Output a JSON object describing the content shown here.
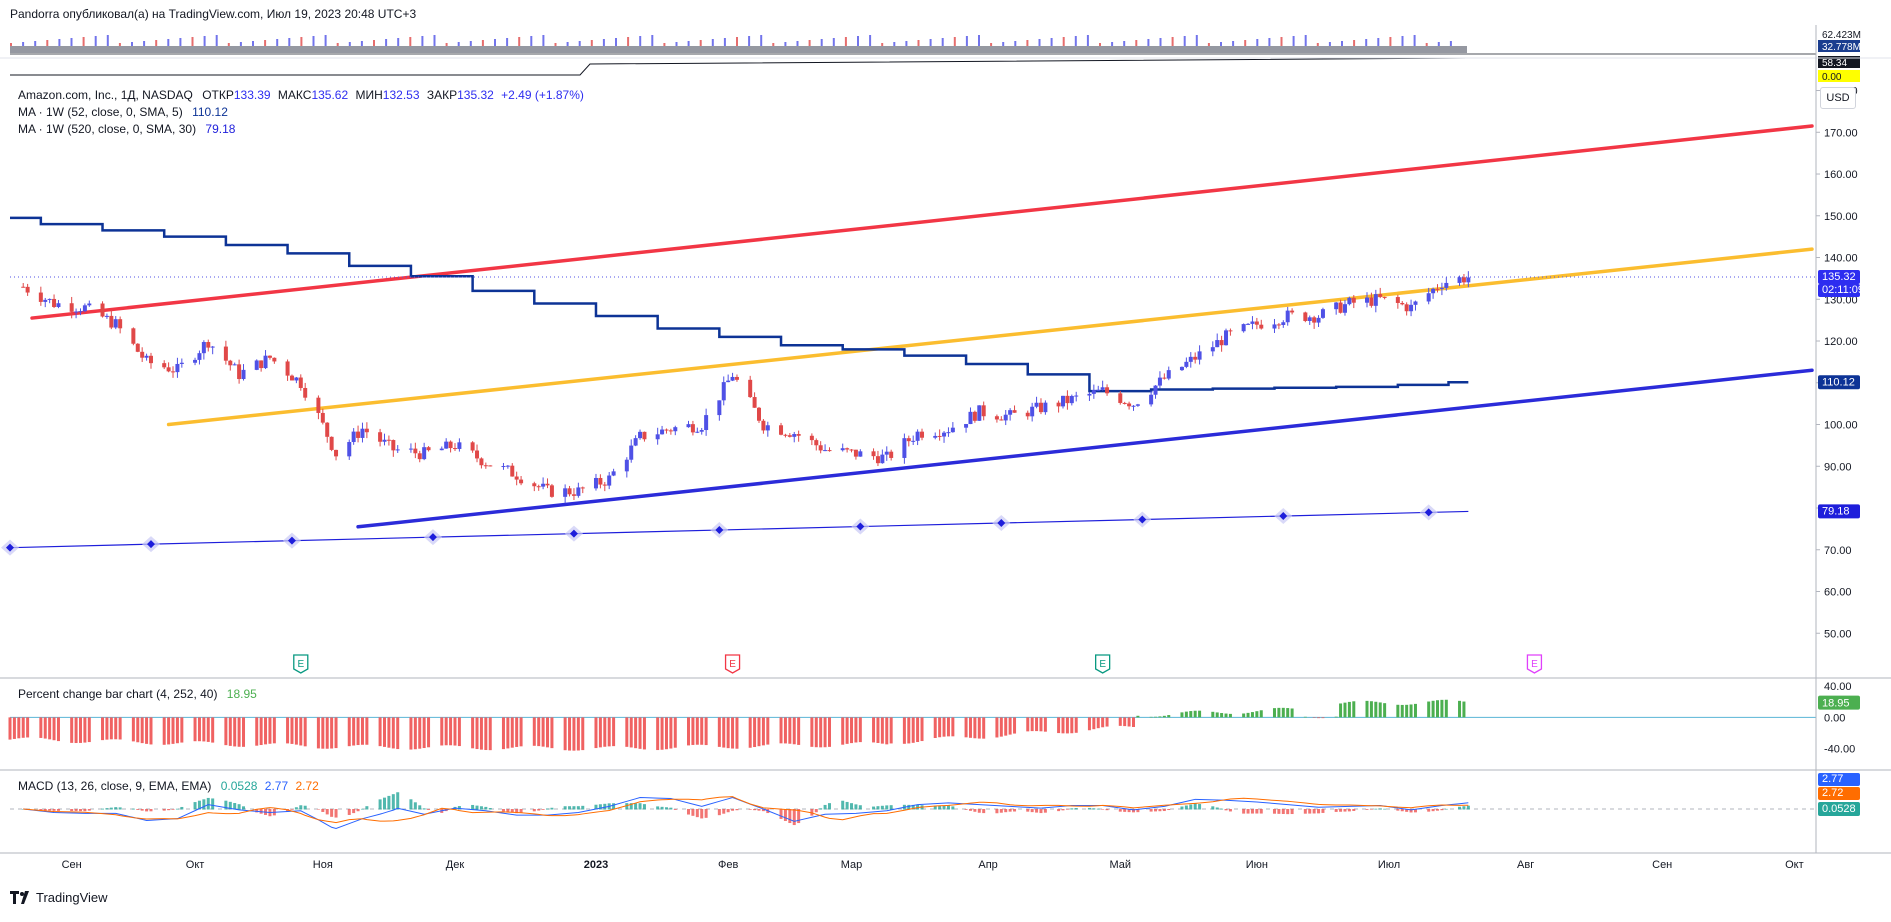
{
  "header": {
    "author_line": "Pandorra опубликовал(а) на TradingView.com, Июл 19, 2023 20:48 UTC+3"
  },
  "volume_pane": {
    "labels": [
      "62.423M",
      "32.778M",
      "58.34",
      "0.00"
    ]
  },
  "main_legend": {
    "symbol": "Amazon.com, Inc., 1Д, NASDAQ",
    "open_label": "ОТКР",
    "open": "133.39",
    "high_label": "МАКС",
    "high": "135.62",
    "low_label": "МИН",
    "low": "132.53",
    "close_label": "ЗАКР",
    "close": "135.32",
    "change": "+2.49 (+1.87%)",
    "ma1_label": "MA · 1W (52, close, 0, SMA, 5)",
    "ma1_value": "110.12",
    "ma2_label": "MA · 1W (520, close, 0, SMA, 30)",
    "ma2_value": "79.18"
  },
  "currency_button": "USD",
  "price_badges": {
    "last_price": "135.32",
    "countdown": "02:11:09",
    "ma1": "110.12",
    "ma2": "79.18"
  },
  "earnings_markers": [
    {
      "label": "E",
      "color": "#089981",
      "date": "2022-10-27"
    },
    {
      "label": "E",
      "color": "#f23645",
      "date": "2023-02-02"
    },
    {
      "label": "E",
      "color": "#089981",
      "date": "2023-04-27"
    },
    {
      "label": "E",
      "color": "#e040fb",
      "date": "2023-08-03"
    }
  ],
  "pct_legend": {
    "label": "Percent change bar chart (4, 252, 40)",
    "value": "18.95"
  },
  "pct_badge": "18.95",
  "macd_legend": {
    "label": "MACD (13, 26, close, 9, EMA, EMA)",
    "v1": "0.0528",
    "v2": "2.77",
    "v3": "2.72"
  },
  "macd_badges": [
    "2.77",
    "2.72",
    "0.0528"
  ],
  "footer": {
    "brand": "TradingView"
  },
  "colors": {
    "up": "#4f51e6",
    "down": "#e04848",
    "red_line": "#f23645",
    "yellow_line": "#fbbd2f",
    "blue_line": "#2b2bd9",
    "ma1": "#0d3396",
    "ma2": "#1e1edb",
    "pct_up": "#4caf50",
    "pct_down": "#f06262",
    "macd": "#2962ff",
    "signal": "#ff6d00"
  },
  "chart_data": [
    {
      "type": "candlestick",
      "title": "Amazon.com, Inc., 1Д, NASDAQ",
      "x_axis_labels": [
        "Сен",
        "Окт",
        "Ноя",
        "Дек",
        "2023",
        "Фев",
        "Мар",
        "Апр",
        "Май",
        "Июн",
        "Июл",
        "Авг",
        "Сен",
        "Окт"
      ],
      "y_ticks": [
        50,
        60,
        70,
        80,
        90,
        100,
        110,
        120,
        130,
        140,
        150,
        160,
        170,
        180
      ],
      "ylim": [
        40,
        183
      ],
      "xlim": [
        "2022-08-22",
        "2023-10-05"
      ],
      "grid": false,
      "price_series": {
        "name": "AMZN",
        "x": [
          "2022-08-25",
          "2022-09-01",
          "2022-09-08",
          "2022-09-15",
          "2022-09-22",
          "2022-09-29",
          "2022-10-06",
          "2022-10-13",
          "2022-10-20",
          "2022-10-27",
          "2022-10-31",
          "2022-11-04",
          "2022-11-10",
          "2022-11-17",
          "2022-11-24",
          "2022-12-01",
          "2022-12-08",
          "2022-12-15",
          "2022-12-22",
          "2022-12-29",
          "2023-01-05",
          "2023-01-12",
          "2023-01-19",
          "2023-01-26",
          "2023-02-02",
          "2023-02-09",
          "2023-02-16",
          "2023-02-23",
          "2023-03-02",
          "2023-03-09",
          "2023-03-16",
          "2023-03-23",
          "2023-03-30",
          "2023-04-06",
          "2023-04-13",
          "2023-04-20",
          "2023-04-27",
          "2023-05-04",
          "2023-05-11",
          "2023-05-18",
          "2023-05-25",
          "2023-06-01",
          "2023-06-08",
          "2023-06-15",
          "2023-06-22",
          "2023-06-29",
          "2023-07-06",
          "2023-07-13",
          "2023-07-19"
        ],
        "close": [
          133,
          129,
          128,
          124,
          115,
          113,
          120,
          112,
          116,
          110,
          102,
          93,
          99,
          94,
          93,
          95,
          91,
          88,
          84,
          84,
          87,
          97,
          99,
          100,
          112,
          100,
          98,
          94,
          93,
          92,
          98,
          99,
          103,
          102,
          104,
          106,
          108,
          105,
          111,
          116,
          121,
          124,
          126,
          126,
          129,
          130,
          128,
          134,
          135.32
        ]
      },
      "lines": [
        {
          "name": "upper",
          "color": "#f23645",
          "from": [
            "2022-08-27",
            125.5
          ],
          "to": [
            "2023-10-05",
            171.5
          ]
        },
        {
          "name": "middle",
          "color": "#fbbd2f",
          "from": [
            "2022-09-27",
            100
          ],
          "to": [
            "2023-10-05",
            142
          ]
        },
        {
          "name": "lower",
          "color": "#2b2bd9",
          "from": [
            "2022-11-09",
            75.5
          ],
          "to": [
            "2023-10-05",
            113
          ]
        }
      ],
      "ma1": {
        "label": "MA · 1W (52, close, 0, SMA, 5)",
        "x": [
          "2022-08-22",
          "2022-09-05",
          "2022-09-19",
          "2022-10-03",
          "2022-10-17",
          "2022-10-31",
          "2022-11-14",
          "2022-11-28",
          "2022-12-12",
          "2022-12-26",
          "2023-01-09",
          "2023-01-23",
          "2023-02-06",
          "2023-02-20",
          "2023-03-06",
          "2023-03-20",
          "2023-04-03",
          "2023-04-17",
          "2023-05-01",
          "2023-05-15",
          "2023-05-29",
          "2023-06-12",
          "2023-06-26",
          "2023-07-10",
          "2023-07-19"
        ],
        "y": [
          149.5,
          148,
          146.5,
          145,
          143,
          141,
          138,
          135.5,
          132,
          129,
          126,
          123,
          121,
          119,
          118,
          116.5,
          114.5,
          112,
          108,
          108.4,
          108.6,
          108.8,
          109,
          109.5,
          110.12
        ]
      },
      "ma2": {
        "label": "MA · 1W (520, close, 0, SMA, 30)",
        "x": [
          "2022-08-22",
          "2023-07-19"
        ],
        "y": [
          70.5,
          79.18
        ]
      }
    },
    {
      "type": "bar",
      "title": "Percent change bar chart (4, 252, 40)",
      "y_ticks": [
        40,
        0,
        -40
      ],
      "ylim": [
        -65,
        48
      ],
      "last_value": 18.95,
      "segments": [
        {
          "from": "2022-08-22",
          "to": "2022-11-07",
          "start": -28,
          "end": -38
        },
        {
          "from": "2022-11-07",
          "to": "2023-01-05",
          "start": -38,
          "end": -40
        },
        {
          "from": "2023-01-05",
          "to": "2023-03-10",
          "start": -40,
          "end": -34
        },
        {
          "from": "2023-03-10",
          "to": "2023-05-05",
          "start": -32,
          "end": -12
        },
        {
          "from": "2023-05-05",
          "to": "2023-06-10",
          "start": 3,
          "end": 10
        },
        {
          "from": "2023-06-10",
          "to": "2023-06-20",
          "start": 2,
          "end": 2
        },
        {
          "from": "2023-06-20",
          "to": "2023-07-19",
          "start": 18,
          "end": 20
        }
      ]
    },
    {
      "type": "line",
      "title": "MACD (13, 26, close, 9, EMA, EMA)",
      "values": {
        "histogram": 0.0528,
        "macd": 2.77,
        "signal": 2.72
      }
    }
  ]
}
